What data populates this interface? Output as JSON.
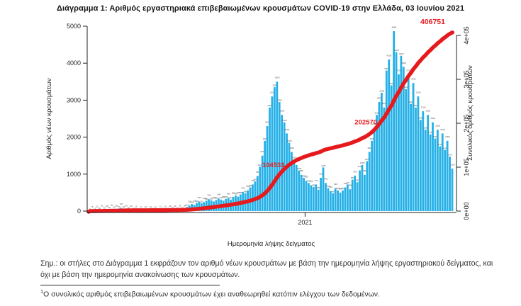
{
  "chart": {
    "title": "Διάγραμμα 1: Αριθμός εργαστηριακά επιβεβαιωμένων κρουσμάτων COVID-19 στην Ελλάδα, 03 Ιουνίου 2021"
  },
  "chart_data": {
    "type": "bar",
    "subtype": "daily bars with cumulative overlay line",
    "title": "Διάγραμμα 1: Αριθμός εργαστηριακά επιβεβαιωμένων κρουσμάτων COVID-19 στην Ελλάδα, 03 Ιουνίου 2021",
    "xlabel": "Ημερομηνία λήψης δείγματος",
    "ylabel_left": "Αριθμός νέων κρουσμάτων",
    "ylabel_right": "Συνολικός αριθμός κρουσμάτων",
    "left_ylim": [
      0,
      5000
    ],
    "right_ylim": [
      0,
      430000
    ],
    "left_ticks": [
      0,
      1000,
      2000,
      3000,
      4000,
      5000
    ],
    "right_ticks": [
      {
        "label": "0e+00",
        "value": 0
      },
      {
        "label": "1e+05",
        "value": 100000
      },
      {
        "label": "2e+05",
        "value": 200000
      },
      {
        "label": "3e+05",
        "value": 300000
      },
      {
        "label": "4e+05",
        "value": 400000
      }
    ],
    "x_ticks": [
      {
        "label": "2021",
        "frac": 0.593
      }
    ],
    "grid": false,
    "legend": "none",
    "bar_color": "#27b1e7",
    "line_color": "#e61a1d",
    "bar_label_color": "#4d4d4d",
    "bar_value_labels": true,
    "daily_new_cases": [
      3,
      8,
      15,
      22,
      30,
      41,
      35,
      28,
      45,
      60,
      52,
      38,
      70,
      88,
      64,
      40,
      32,
      26,
      20,
      15,
      12,
      9,
      14,
      10,
      8,
      12,
      16,
      11,
      9,
      13,
      18,
      15,
      22,
      28,
      35,
      30,
      26,
      33,
      40,
      38,
      110,
      150,
      190,
      170,
      220,
      260,
      210,
      240,
      280,
      320,
      290,
      260,
      300,
      340,
      310,
      280,
      330,
      360,
      310,
      380,
      420,
      390,
      450,
      520,
      480,
      560,
      640,
      720,
      800,
      950,
      1200,
      1500,
      1900,
      2300,
      2800,
      3100,
      3350,
      3500,
      2950,
      2600,
      2400,
      2100,
      1850,
      1600,
      1400,
      1250,
      1100,
      980,
      900,
      820,
      760,
      700,
      650,
      720,
      580,
      900,
      1180,
      760,
      620,
      540,
      480,
      620,
      560,
      500,
      560,
      640,
      720,
      590,
      850,
      960,
      780,
      1100,
      1250,
      980,
      1350,
      1600,
      1900,
      2250,
      2600,
      2950,
      3200,
      2800,
      3800,
      4100,
      3400,
      4865,
      4300,
      3700,
      4200,
      3900,
      3300,
      3700,
      2900,
      3465,
      2800,
      3100,
      2465,
      2700,
      2200,
      2600,
      2075,
      2400,
      1963,
      2200,
      1750,
      2100,
      1650,
      1900,
      1471,
      1150
    ],
    "cumulative_final": 406751,
    "line_annotations": [
      {
        "text": "104531",
        "value": 104531,
        "final": false
      },
      {
        "text": "202570",
        "value": 202570,
        "final": false
      },
      {
        "text": "406751",
        "value": 406751,
        "final": true
      }
    ]
  },
  "notes": {
    "note": "Σημ.: οι στήλες στο Διάγραμμα 1 εκφράζουν τον αριθμό νέων κρουσμάτων με βάση την ημερομηνία λήψης εργαστηριακού δείγματος, και όχι με βάση την ημερομηνία ανακοίνωσης των κρουσμάτων.",
    "footnote_sup": "1",
    "footnote": "Ο συνολικός αριθμός επιβεβαιωμένων κρουσμάτων έχει αναθεωρηθεί κατόπιν ελέγχου των δεδομένων."
  }
}
